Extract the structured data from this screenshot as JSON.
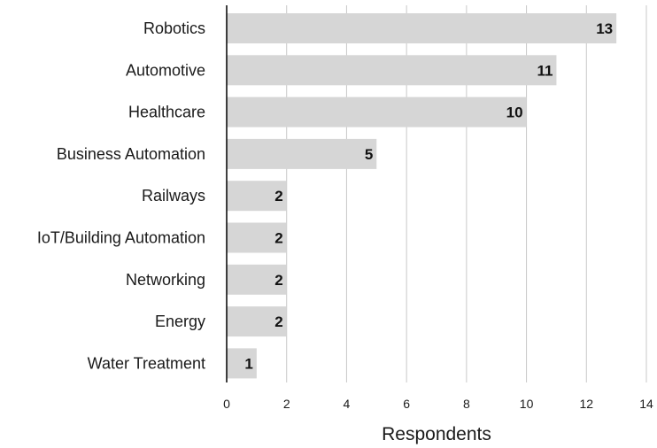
{
  "chart_data": {
    "type": "bar",
    "orientation": "horizontal",
    "categories": [
      "Robotics",
      "Automotive",
      "Healthcare",
      "Business Automation",
      "Railways",
      "IoT/Building Automation",
      "Networking",
      "Energy",
      "Water Treatment"
    ],
    "values": [
      13,
      11,
      10,
      5,
      2,
      2,
      2,
      2,
      1
    ],
    "title": "",
    "xlabel": "Respondents",
    "ylabel": "",
    "xlim": [
      0,
      14
    ],
    "xticks": [
      "0",
      "2",
      "4",
      "6",
      "8",
      "10",
      "12",
      "14"
    ],
    "grid": "vertical",
    "data_labels": true,
    "colors": {
      "bar": "#d6d6d6",
      "grid": "#c8c8c8",
      "axis": "#000000"
    }
  }
}
